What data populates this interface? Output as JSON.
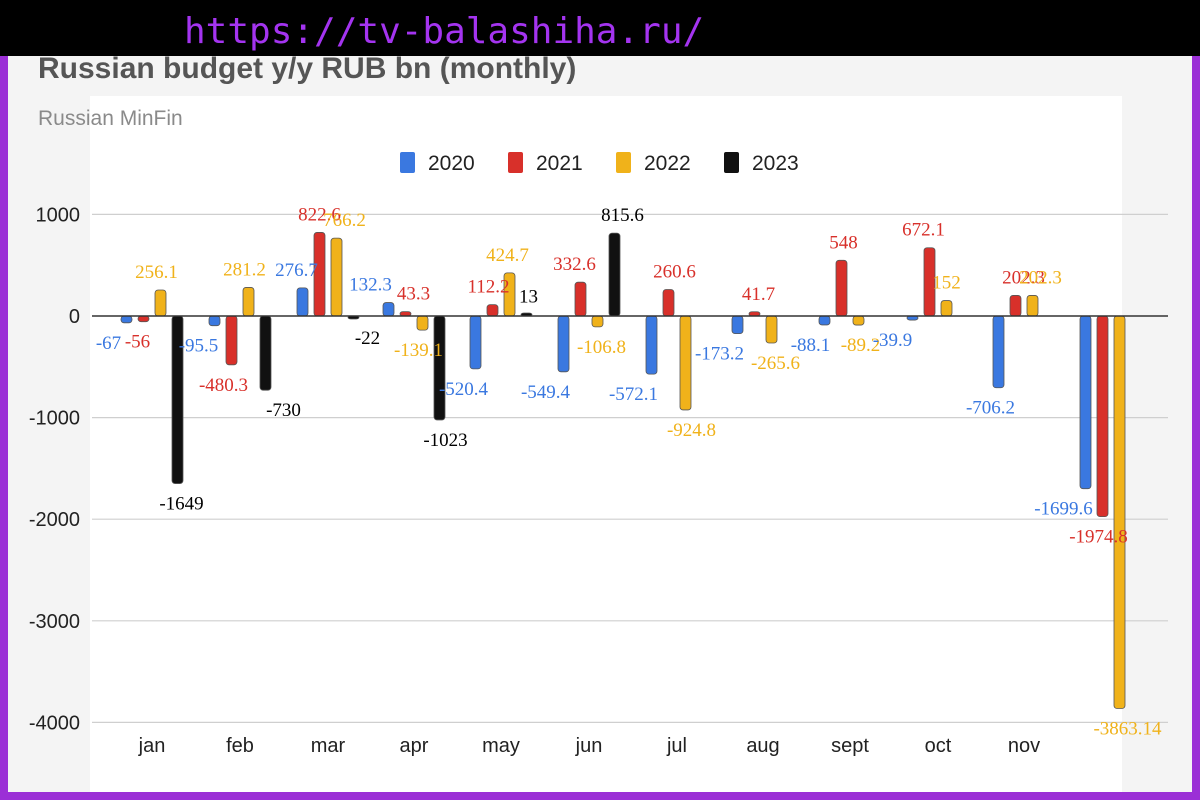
{
  "watermark": {
    "url": "https://tv-balashiha.ru/"
  },
  "chart_data": {
    "type": "bar",
    "title": "Russian budget y/y RUB bn (monthly)",
    "subtitle": "Russian MinFin",
    "xlabel": "",
    "ylabel": "",
    "ylim": [
      -4000,
      1000
    ],
    "yticks": [
      1000,
      0,
      -1000,
      -2000,
      -3000,
      -4000
    ],
    "grid": true,
    "legend_position": "top",
    "categories": [
      "jan",
      "feb",
      "mar",
      "apr",
      "may",
      "jun",
      "jul",
      "aug",
      "sept",
      "oct",
      "nov",
      ""
    ],
    "series": [
      {
        "name": "2020",
        "color": "#3a78e0",
        "values": [
          -67,
          -95.5,
          276.7,
          132.3,
          -520.4,
          -549.4,
          -572.1,
          -173.2,
          -88.1,
          -39.9,
          -706.2,
          -1699.6
        ],
        "labels": [
          "-67",
          "-95.5",
          "276.7",
          "132.3",
          "-520.4",
          "-549.4",
          "-572.1",
          "-173.2",
          "-88.1",
          "-39.9",
          "-706.2",
          "-1699.6"
        ]
      },
      {
        "name": "2021",
        "color": "#d8302a",
        "values": [
          -56,
          -480.3,
          822.6,
          43.3,
          112.2,
          332.6,
          260.6,
          41.7,
          548,
          672.1,
          202.3,
          -1974.8
        ],
        "labels": [
          "-56",
          "-480.3",
          "822.6",
          "43.3",
          "112.2",
          "332.6",
          "260.6",
          "41.7",
          "548",
          "672.1",
          "202.3",
          "-1974.8"
        ]
      },
      {
        "name": "2022",
        "color": "#f0b21a",
        "values": [
          256.1,
          281.2,
          766.2,
          -139.1,
          424.7,
          -106.8,
          -924.8,
          -265.6,
          -89.2,
          152,
          202.3,
          -3863.14
        ],
        "labels": [
          "256.1",
          "281.2",
          "766.2",
          "-139.1",
          "424.7",
          "-106.8",
          "-924.8",
          "-265.6",
          "-89.2",
          "152",
          "202.3",
          "-3863.14"
        ]
      },
      {
        "name": "2023",
        "color": "#111111",
        "values": [
          -1649,
          -730,
          -22,
          -1023,
          13,
          815.6,
          null,
          null,
          null,
          null,
          null,
          null
        ],
        "labels": [
          "-1649",
          "-730",
          "-22",
          "-1023",
          "13",
          "815.6",
          "",
          "",
          "",
          "",
          "",
          ""
        ]
      }
    ]
  }
}
